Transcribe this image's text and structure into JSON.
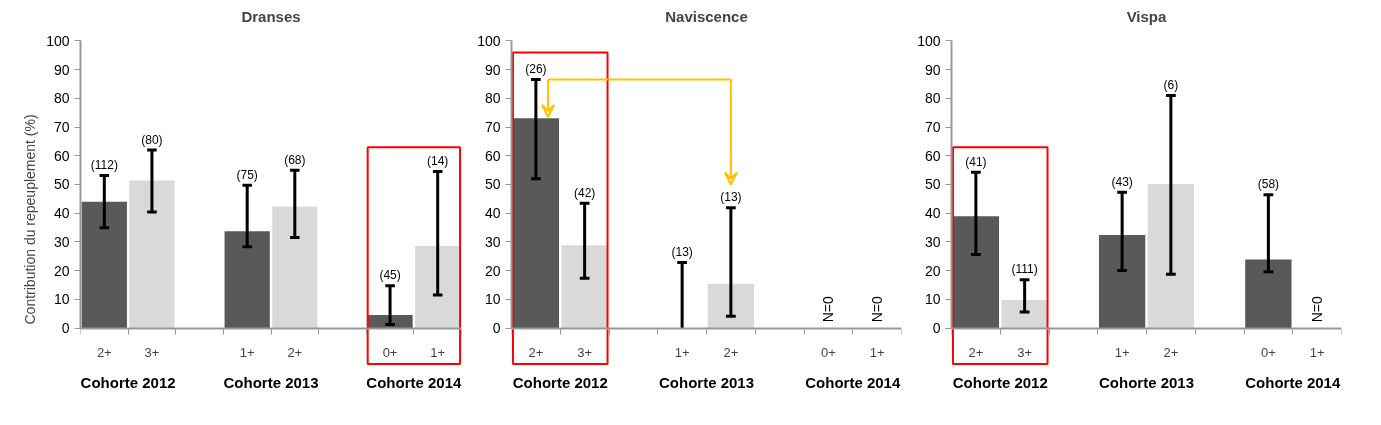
{
  "chart_data": [
    {
      "type": "bar",
      "title": "Dranses",
      "ylabel": "Contribution du repeuplement  (%)",
      "categories": [
        "2+",
        "3+",
        null,
        "1+",
        "2+",
        null,
        "0+",
        "1+"
      ],
      "values": [
        44,
        51.4,
        null,
        33.7,
        42.3,
        null,
        4.5,
        28.6
      ],
      "colors": [
        "#595959",
        "#d9d9d9",
        null,
        "#595959",
        "#d9d9d9",
        null,
        "#595959",
        "#d9d9d9"
      ],
      "errors": [
        [
          34.9,
          53.1
        ],
        [
          40.4,
          62
        ],
        null,
        [
          28.3,
          49.7
        ],
        [
          31.5,
          55
        ],
        null,
        [
          1.2,
          14.7
        ],
        [
          11.5,
          54.5
        ]
      ],
      "annotations": [
        "Cohorte 2012",
        "Cohorte 2013",
        "Cohorte 2014",
        "(112)",
        "(80)",
        "(75)",
        "(68)",
        "(45)",
        "(14)"
      ],
      "ylim": [
        0,
        100
      ],
      "yticks": [
        0,
        10,
        20,
        30,
        40,
        50,
        60,
        70,
        80,
        90,
        100
      ]
    },
    {
      "type": "bar",
      "title": "Naviscence",
      "categories": [
        "2+",
        "3+",
        null,
        "1+",
        "2+",
        null,
        "0+",
        "1+"
      ],
      "values": [
        73.1,
        28.8,
        null,
        0,
        15.4,
        null,
        null,
        null
      ],
      "colors": [
        "#595959",
        "#d9d9d9",
        null,
        "#595959",
        "#d9d9d9",
        null,
        "#595959",
        "#d9d9d9"
      ],
      "errors": [
        [
          52,
          86.6
        ],
        [
          17.3,
          43.5
        ],
        null,
        [
          0,
          22.8
        ],
        [
          4.1,
          41.9
        ],
        null,
        null,
        null
      ],
      "annotations": [
        "Cohorte 2012",
        "Cohorte 2013",
        "Cohorte 2014",
        {
          "text": "(26)",
          "x": "2+",
          "y": 86.6
        },
        "(42)",
        "(13)",
        "(13)",
        "N=0",
        "N=0"
      ],
      "ylim": [
        0,
        100
      ],
      "yticks": [
        0,
        10,
        20,
        30,
        40,
        50,
        60,
        70,
        80,
        90,
        100
      ]
    },
    {
      "type": "bar",
      "title": "Vispa",
      "categories": [
        "2+",
        "3+",
        null,
        "1+",
        "2+",
        null,
        "0+",
        "1+"
      ],
      "values": [
        38.9,
        9.8,
        null,
        32.4,
        50.2,
        null,
        23.9,
        null
      ],
      "colors": [
        "#595959",
        "#d9d9d9",
        null,
        "#595959",
        "#d9d9d9",
        null,
        "#595959",
        "#d9d9d9"
      ],
      "errors": [
        [
          25.6,
          54.3
        ],
        [
          5.6,
          16.8
        ],
        null,
        [
          20,
          47.3
        ],
        [
          18.7,
          81
        ],
        null,
        [
          19.6,
          46.4
        ],
        null
      ],
      "annotations": [
        "Cohorte 2012",
        "Cohorte 2013",
        "Cohorte 2014",
        "(41)",
        "(111)",
        "(43)",
        "(6)",
        "(58)",
        "N=0"
      ],
      "ylim": [
        0,
        100
      ],
      "yticks": [
        0,
        10,
        20,
        30,
        40,
        50,
        60,
        70,
        80,
        90,
        100
      ]
    }
  ]
}
